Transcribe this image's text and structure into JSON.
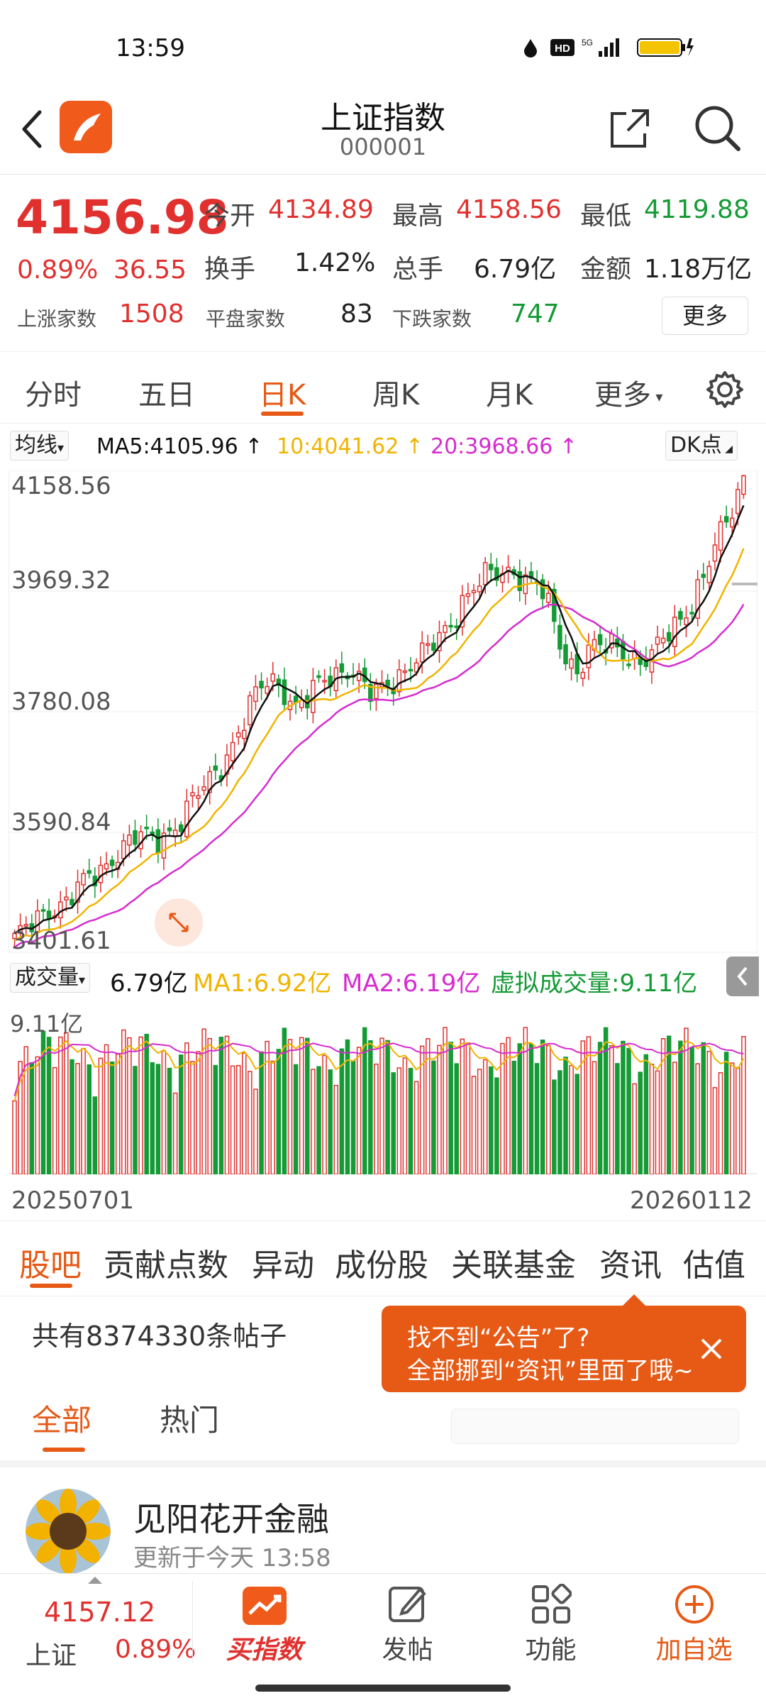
{
  "status_bar": {
    "time": "13:59",
    "network": "5G"
  },
  "header": {
    "title": "上证指数",
    "code": "000001"
  },
  "quote": {
    "price": "4156.98",
    "change_pct": "0.89%",
    "change": "36.55",
    "open_label": "今开",
    "open": "4134.89",
    "high_label": "最高",
    "high": "4158.56",
    "low_label": "最低",
    "low": "4119.88",
    "turnover_label": "换手",
    "turnover": "1.42%",
    "volume_label": "总手",
    "volume": "6.79亿",
    "amount_label": "金额",
    "amount": "1.18万亿",
    "up_label": "上涨家数",
    "up": "1508",
    "flat_label": "平盘家数",
    "flat": "83",
    "down_label": "下跌家数",
    "down": "747",
    "more": "更多"
  },
  "period_tabs": [
    "分时",
    "五日",
    "日K",
    "周K",
    "月K",
    "更多"
  ],
  "active_period": "日K",
  "ma_bar": {
    "select": "均线",
    "ma5": "MA5:4105.96",
    "ma10": "10:4041.62",
    "ma20": "20:3968.66",
    "dk": "DK点"
  },
  "y_axis": [
    "4158.56",
    "3969.32",
    "3780.08",
    "3590.84",
    "3401.61"
  ],
  "vol_bar": {
    "select": "成交量",
    "value": "6.79亿",
    "ma1": "MA1:6.92亿",
    "ma2": "MA2:6.19亿",
    "virtual": "虚拟成交量:9.11亿",
    "max": "9.11亿"
  },
  "date_range": {
    "start": "20250701",
    "end": "20260112"
  },
  "bottom_tabs": [
    "股吧",
    "贡献点数",
    "异动",
    "成份股",
    "关联基金",
    "资讯",
    "估值"
  ],
  "forum": {
    "count_text": "共有8374330条帖子",
    "sub_tabs": [
      "全部",
      "热门"
    ],
    "tooltip_line1": "找不到“公告”了?",
    "tooltip_line2": "全部挪到“资讯”里面了哦~",
    "post_user": "见阳花开金融",
    "post_time": "更新于今天 13:58"
  },
  "navbar": {
    "mini_price": "4157.12",
    "mini_name": "上证",
    "mini_pct": "0.89%",
    "items": [
      "买指数",
      "发帖",
      "功能",
      "加自选"
    ]
  },
  "colors": {
    "up": "#e0312f",
    "down": "#159b36",
    "accent": "#e65a16",
    "ma5": "#111111",
    "ma10": "#f0b400",
    "ma20": "#d62ccf"
  },
  "chart_data": {
    "type": "candlestick",
    "ylim": [
      3401.61,
      4158.56
    ],
    "x_range": [
      "20250701",
      "20260112"
    ],
    "series": [
      {
        "name": "MA5",
        "last": 4105.96
      },
      {
        "name": "MA10",
        "last": 4041.62
      },
      {
        "name": "MA20",
        "last": 3968.66
      }
    ],
    "close_path": [
      3420,
      3430,
      3450,
      3470,
      3480,
      3500,
      3510,
      3530,
      3560,
      3575,
      3580,
      3570,
      3590,
      3610,
      3640,
      3660,
      3690,
      3730,
      3770,
      3810,
      3830,
      3820,
      3790,
      3800,
      3825,
      3840,
      3855,
      3830,
      3800,
      3820,
      3840,
      3860,
      3870,
      3890,
      3920,
      3960,
      3980,
      3995,
      4000,
      4010,
      3990,
      3980,
      3930,
      3870,
      3850,
      3880,
      3880,
      3885,
      3875,
      3860,
      3870,
      3900,
      3930,
      3960,
      4000,
      4050,
      4100,
      4157
    ]
  }
}
